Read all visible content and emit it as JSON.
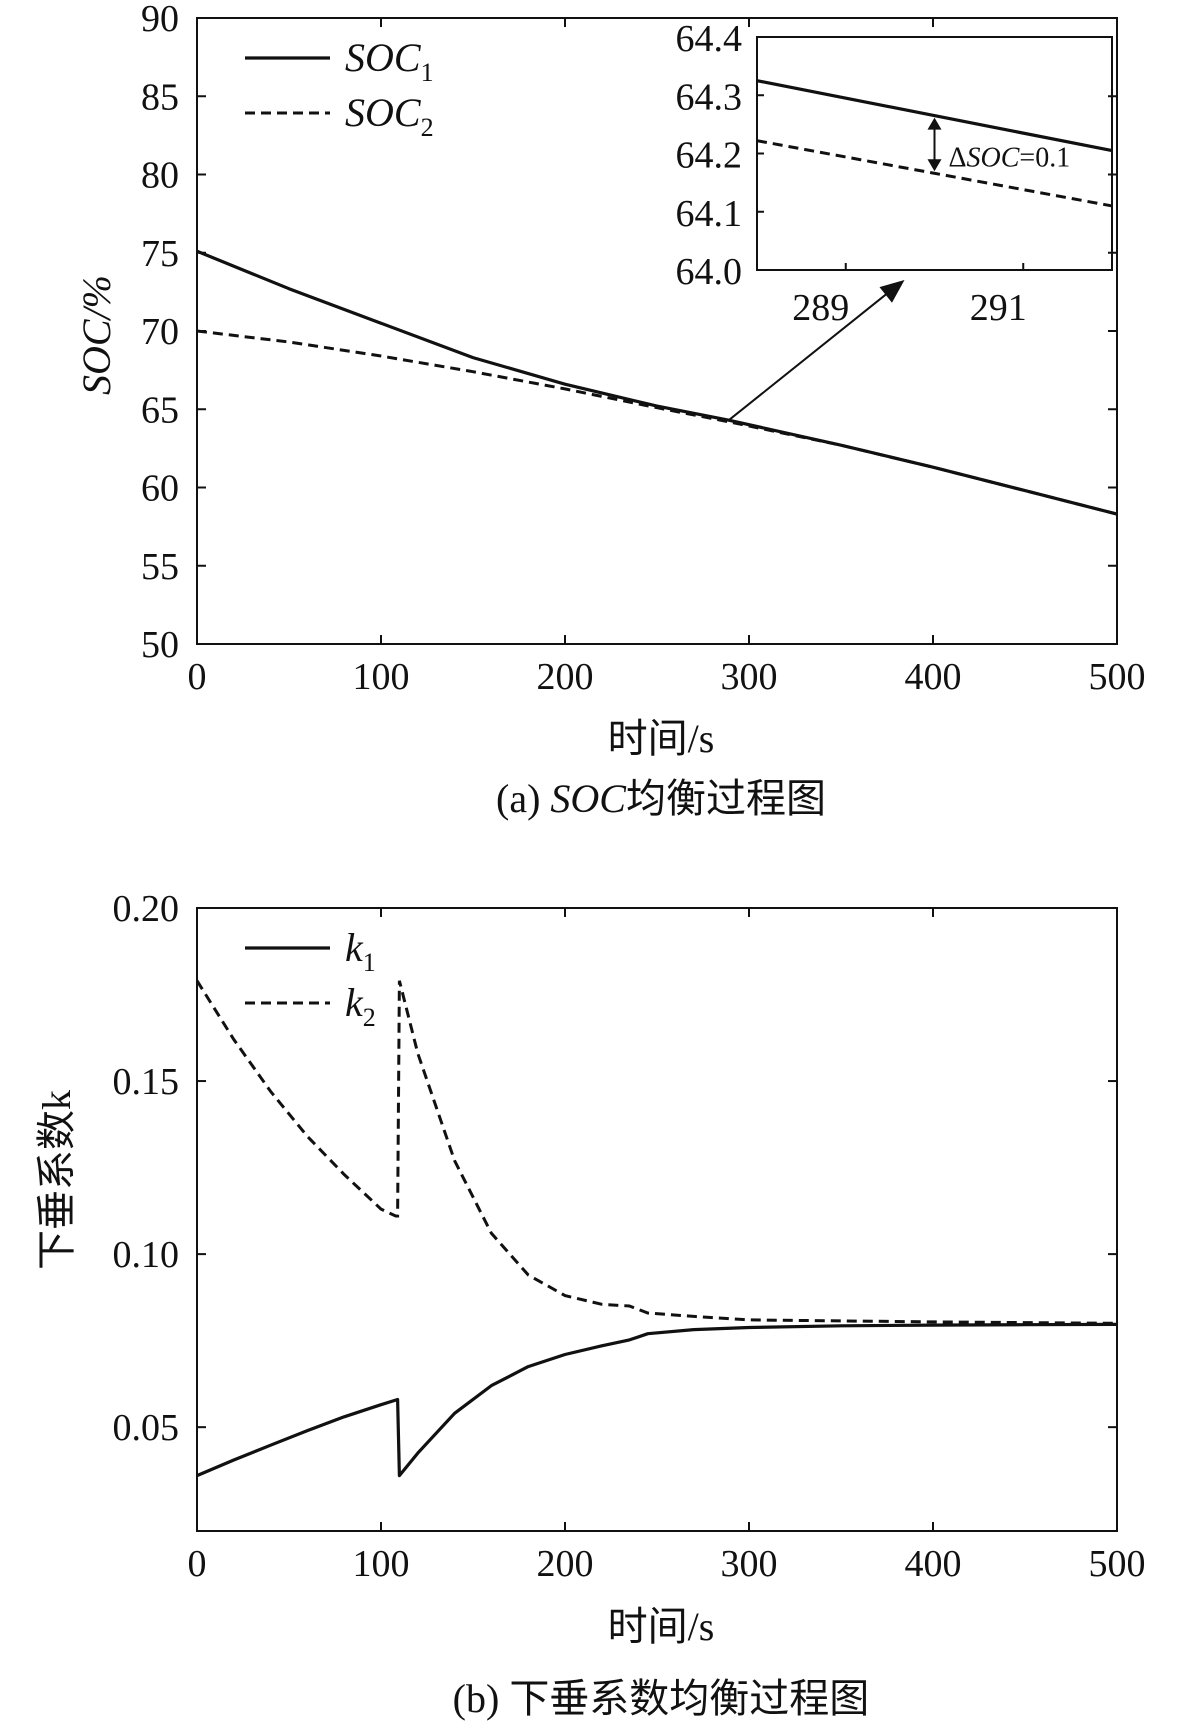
{
  "chart_data": [
    {
      "type": "line",
      "title": "",
      "caption_prefix": "(a) ",
      "caption_italic": "SOC",
      "caption_suffix": "均衡过程图",
      "xlabel": "时间/s",
      "ylabel": "SOC/%",
      "xlim": [
        0,
        500
      ],
      "ylim": [
        50,
        90
      ],
      "xticks": [
        0,
        100,
        200,
        300,
        400,
        500
      ],
      "yticks": [
        50,
        55,
        60,
        65,
        70,
        75,
        80,
        85,
        90
      ],
      "legend": {
        "placement": "top-left"
      },
      "series": [
        {
          "name": "SOC",
          "subscript": "1",
          "style": "solid",
          "x": [
            0,
            50,
            100,
            150,
            200,
            250,
            289,
            350,
            400,
            450,
            500
          ],
          "y": [
            75.1,
            72.7,
            70.5,
            68.3,
            66.6,
            65.2,
            64.3,
            62.7,
            61.3,
            59.8,
            58.3
          ]
        },
        {
          "name": "SOC",
          "subscript": "2",
          "style": "dashed",
          "x": [
            0,
            50,
            100,
            150,
            200,
            250,
            289,
            350,
            400,
            450,
            500
          ],
          "y": [
            70.0,
            69.3,
            68.4,
            67.4,
            66.3,
            65.1,
            64.2,
            62.7,
            61.3,
            59.8,
            58.3
          ]
        }
      ],
      "inset": {
        "xlim": [
          288,
          292
        ],
        "ylim": [
          64.0,
          64.4
        ],
        "xticks": [
          289,
          291
        ],
        "yticks": [
          64.0,
          64.1,
          64.2,
          64.3,
          64.4
        ],
        "annotation": "ΔSOC=0.1",
        "annotation_prefix": "Δ",
        "annotation_italic": "SOC",
        "annotation_suffix": "=0.1",
        "marker_x": 290,
        "series": [
          {
            "x": [
              288,
              292
            ],
            "y": [
              64.325,
              64.205
            ]
          },
          {
            "x": [
              288,
              292
            ],
            "y": [
              64.222,
              64.11
            ]
          }
        ],
        "source_point": [
          289,
          64.3
        ]
      }
    },
    {
      "type": "line",
      "title": "",
      "caption": "(b) 下垂系数均衡过程图",
      "xlabel": "时间/s",
      "ylabel": "下垂系数k",
      "xlim": [
        0,
        500
      ],
      "ylim": [
        0.02,
        0.2
      ],
      "xticks": [
        0,
        100,
        200,
        300,
        400,
        500
      ],
      "yticks": [
        0.05,
        0.1,
        0.15,
        0.2
      ],
      "ytick_labels": [
        "0.05",
        "0.10",
        "0.15",
        "0.20"
      ],
      "legend": {
        "placement": "top-left"
      },
      "series": [
        {
          "name": "k",
          "subscript": "1",
          "style": "solid",
          "x": [
            0,
            20,
            40,
            60,
            80,
            100,
            109,
            110,
            120,
            140,
            160,
            180,
            200,
            220,
            235,
            245,
            270,
            300,
            350,
            400,
            450,
            500
          ],
          "y": [
            0.036,
            0.0405,
            0.0448,
            0.049,
            0.053,
            0.0565,
            0.058,
            0.036,
            0.0425,
            0.054,
            0.062,
            0.0675,
            0.071,
            0.0735,
            0.0752,
            0.077,
            0.0782,
            0.0788,
            0.0793,
            0.0795,
            0.0796,
            0.0797
          ]
        },
        {
          "name": "k",
          "subscript": "2",
          "style": "dashed",
          "x": [
            0,
            20,
            40,
            60,
            80,
            100,
            108,
            109,
            110,
            120,
            140,
            160,
            180,
            200,
            220,
            235,
            245,
            270,
            300,
            350,
            400,
            450,
            500
          ],
          "y": [
            0.179,
            0.162,
            0.147,
            0.134,
            0.123,
            0.113,
            0.111,
            0.111,
            0.179,
            0.158,
            0.127,
            0.106,
            0.094,
            0.088,
            0.0855,
            0.085,
            0.083,
            0.082,
            0.081,
            0.0807,
            0.0804,
            0.0802,
            0.08
          ]
        }
      ]
    }
  ]
}
